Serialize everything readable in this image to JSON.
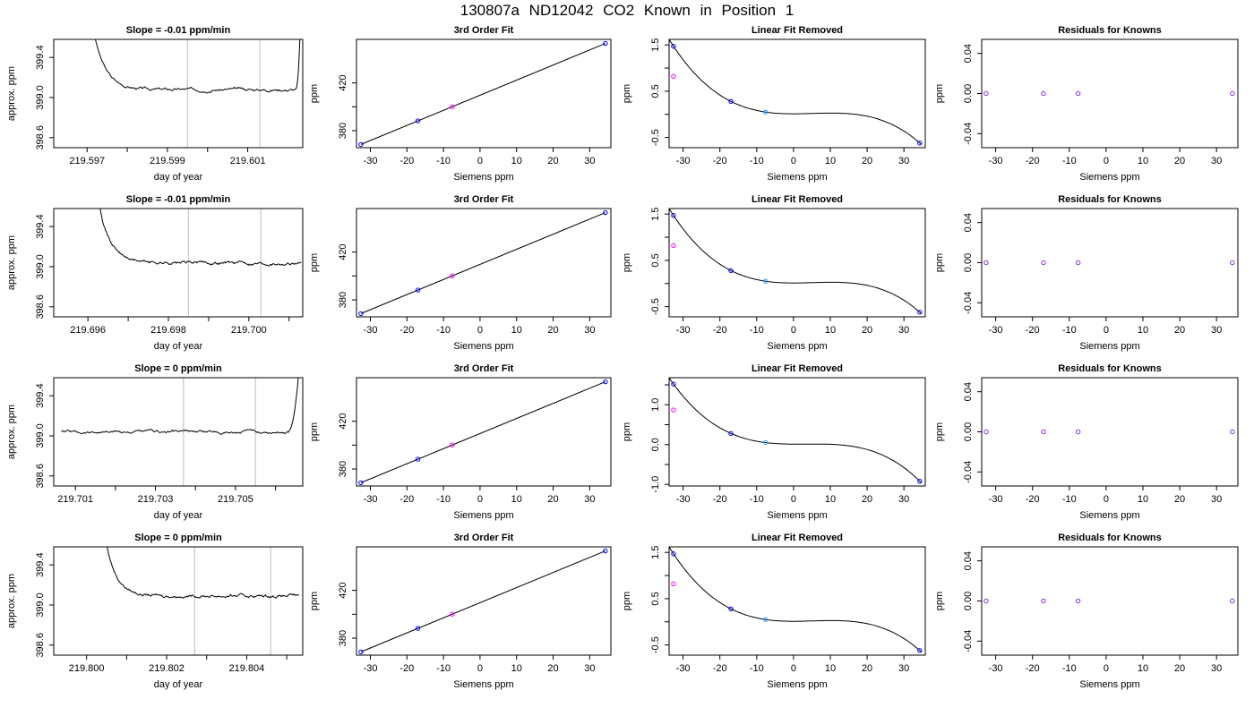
{
  "title": "130807a     ND12042    CO2 Known in Position  1",
  "colors": {
    "trace": "#000000",
    "window_line": "#c8c8c8",
    "point_blue": "#0000ff",
    "point_magenta": "#ff00ff",
    "point_cyan": "#1e9fff",
    "point_purple": "#8a2be2",
    "fit_line": "#000000"
  },
  "chart_data": [
    {
      "type": "line",
      "name": "timeseries-1",
      "title": "Slope =  -0.01  ppm/min",
      "xlabel": "day of year",
      "ylabel": "approx. ppm",
      "xlim": [
        219.59617,
        219.60237
      ],
      "ylim": [
        398.5,
        399.58
      ],
      "xticks": [
        219.597,
        219.598,
        219.599,
        219.6,
        219.601
      ],
      "xticklabels": [
        "219.597",
        "",
        "219.599",
        "",
        "219.601"
      ],
      "yticks": [
        398.6,
        399.0,
        399.4
      ],
      "yticklabels": [
        "398.6",
        "399.0",
        "399.4"
      ],
      "window_lines": [
        219.5995,
        219.6013
      ],
      "trace": {
        "x_start": 219.5972,
        "x_end": 219.6023,
        "y_start": 399.6,
        "level": 399.08,
        "noise": 0.012,
        "rise_at": 219.6022,
        "y_end": 399.6
      }
    },
    {
      "type": "scatter",
      "name": "fit-1",
      "title": "3rd Order Fit",
      "xlabel": "Siemens ppm",
      "ylabel": "ppm",
      "xlim": [
        -33.8,
        35.8
      ],
      "ylim": [
        365.8,
        456.4
      ],
      "xticks": [
        -30,
        -20,
        -10,
        0,
        10,
        20,
        30
      ],
      "xticklabels": [
        "-30",
        "-20",
        "-10",
        "0",
        "10",
        "20",
        "30"
      ],
      "yticks": [
        380,
        400,
        420
      ],
      "yticklabels": [
        "380",
        "",
        "420"
      ],
      "fit_line": [
        [
          -32.6,
          368.5
        ],
        [
          34.3,
          453.0
        ]
      ],
      "points": [
        {
          "x": -32.6,
          "y": 368.5,
          "color": "blue"
        },
        {
          "x": -17.0,
          "y": 388.2,
          "color": "blue"
        },
        {
          "x": -7.6,
          "y": 400.1,
          "color": "magenta"
        },
        {
          "x": 34.3,
          "y": 453.0,
          "color": "blue"
        }
      ]
    },
    {
      "type": "line",
      "name": "linear-removed-1",
      "title": "Linear Fit Removed",
      "xlabel": "Siemens ppm",
      "ylabel": "ppm",
      "xlim": [
        -33.8,
        35.8
      ],
      "ylim": [
        -0.72,
        1.62
      ],
      "xticks": [
        -30,
        -20,
        -10,
        0,
        10,
        20,
        30
      ],
      "xticklabels": [
        "-30",
        "-20",
        "-10",
        "0",
        "10",
        "20",
        "30"
      ],
      "yticks": [
        -0.5,
        0,
        0.5,
        1.0,
        1.5
      ],
      "yticklabels": [
        "-0.5",
        "",
        "0.5",
        "",
        "1.5"
      ],
      "curve": [
        [
          -32.6,
          1.47
        ],
        [
          -17.0,
          0.28
        ],
        [
          -7.6,
          0.05
        ],
        [
          34.3,
          -0.62
        ]
      ],
      "points": [
        {
          "x": -32.6,
          "y": 1.47,
          "color": "blue"
        },
        {
          "x": -32.6,
          "y": 0.82,
          "color": "magenta"
        },
        {
          "x": -17.0,
          "y": 0.28,
          "color": "blue"
        },
        {
          "x": -7.6,
          "y": 0.05,
          "color": "cyan"
        },
        {
          "x": 34.3,
          "y": -0.62,
          "color": "blue"
        }
      ]
    },
    {
      "type": "scatter",
      "name": "residuals-1",
      "title": "Residuals for Knowns",
      "xlabel": "Siemens ppm",
      "ylabel": "ppm",
      "xlim": [
        -33.8,
        35.8
      ],
      "ylim": [
        -0.054,
        0.054
      ],
      "xticks": [
        -30,
        -20,
        -10,
        0,
        10,
        20,
        30
      ],
      "xticklabels": [
        "-30",
        "-20",
        "-10",
        "0",
        "10",
        "20",
        "30"
      ],
      "yticks": [
        -0.04,
        0,
        0.04
      ],
      "yticklabels": [
        "-0.04",
        "0.00",
        "0.04"
      ],
      "points": [
        {
          "x": -32.6,
          "y": 0,
          "color": "purple"
        },
        {
          "x": -17.0,
          "y": 0,
          "color": "purple"
        },
        {
          "x": -7.6,
          "y": 0,
          "color": "purple"
        },
        {
          "x": 34.3,
          "y": 0,
          "color": "purple"
        }
      ]
    },
    {
      "type": "line",
      "name": "timeseries-2",
      "title": "Slope =  -0.01  ppm/min",
      "xlabel": "day of year",
      "ylabel": "approx. ppm",
      "xlim": [
        219.69515,
        219.70134
      ],
      "ylim": [
        398.5,
        399.58
      ],
      "xticks": [
        219.696,
        219.697,
        219.698,
        219.699,
        219.7,
        219.701
      ],
      "xticklabels": [
        "219.696",
        "",
        "219.698",
        "",
        "219.700",
        ""
      ],
      "yticks": [
        398.6,
        399.0,
        399.4
      ],
      "yticklabels": [
        "398.6",
        "399.0",
        "399.4"
      ],
      "window_lines": [
        219.6985,
        219.7003
      ],
      "trace": {
        "x_start": 219.6963,
        "x_end": 219.7013,
        "y_start": 399.6,
        "level": 399.04,
        "noise": 0.014,
        "rise_at": null,
        "y_end": 399.04
      }
    },
    {
      "type": "scatter",
      "name": "fit-2",
      "title": "3rd Order Fit",
      "xlabel": "Siemens ppm",
      "ylabel": "ppm",
      "xlim": [
        -33.8,
        35.8
      ],
      "ylim": [
        365.8,
        456.4
      ],
      "xticks": [
        -30,
        -20,
        -10,
        0,
        10,
        20,
        30
      ],
      "xticklabels": [
        "-30",
        "-20",
        "-10",
        "0",
        "10",
        "20",
        "30"
      ],
      "yticks": [
        380,
        400,
        420
      ],
      "yticklabels": [
        "380",
        "",
        "420"
      ],
      "fit_line": [
        [
          -32.6,
          368.5
        ],
        [
          34.3,
          453.0
        ]
      ],
      "points": [
        {
          "x": -32.6,
          "y": 368.5,
          "color": "blue"
        },
        {
          "x": -17.0,
          "y": 388.2,
          "color": "blue"
        },
        {
          "x": -7.6,
          "y": 400.1,
          "color": "magenta"
        },
        {
          "x": 34.3,
          "y": 453.0,
          "color": "blue"
        }
      ]
    },
    {
      "type": "line",
      "name": "linear-removed-2",
      "title": "Linear Fit Removed",
      "xlabel": "Siemens ppm",
      "ylabel": "ppm",
      "xlim": [
        -33.8,
        35.8
      ],
      "ylim": [
        -0.72,
        1.62
      ],
      "xticks": [
        -30,
        -20,
        -10,
        0,
        10,
        20,
        30
      ],
      "xticklabels": [
        "-30",
        "-20",
        "-10",
        "0",
        "10",
        "20",
        "30"
      ],
      "yticks": [
        -0.5,
        0,
        0.5,
        1.0,
        1.5
      ],
      "yticklabels": [
        "-0.5",
        "",
        "0.5",
        "",
        "1.5"
      ],
      "curve": [
        [
          -32.6,
          1.47
        ],
        [
          -17.0,
          0.28
        ],
        [
          -7.6,
          0.05
        ],
        [
          34.3,
          -0.62
        ]
      ],
      "points": [
        {
          "x": -32.6,
          "y": 1.47,
          "color": "blue"
        },
        {
          "x": -32.6,
          "y": 0.82,
          "color": "magenta"
        },
        {
          "x": -17.0,
          "y": 0.28,
          "color": "blue"
        },
        {
          "x": -7.6,
          "y": 0.05,
          "color": "cyan"
        },
        {
          "x": 34.3,
          "y": -0.62,
          "color": "blue"
        }
      ]
    },
    {
      "type": "scatter",
      "name": "residuals-2",
      "title": "Residuals for Knowns",
      "xlabel": "Siemens ppm",
      "ylabel": "ppm",
      "xlim": [
        -33.8,
        35.8
      ],
      "ylim": [
        -0.054,
        0.054
      ],
      "xticks": [
        -30,
        -20,
        -10,
        0,
        10,
        20,
        30
      ],
      "xticklabels": [
        "-30",
        "-20",
        "-10",
        "0",
        "10",
        "20",
        "30"
      ],
      "yticks": [
        -0.04,
        0,
        0.04
      ],
      "yticklabels": [
        "-0.04",
        "0.00",
        "0.04"
      ],
      "points": [
        {
          "x": -32.6,
          "y": 0,
          "color": "purple"
        },
        {
          "x": -17.0,
          "y": 0,
          "color": "purple"
        },
        {
          "x": -7.6,
          "y": 0,
          "color": "purple"
        },
        {
          "x": 34.3,
          "y": 0,
          "color": "purple"
        }
      ]
    },
    {
      "type": "line",
      "name": "timeseries-3",
      "title": "Slope =  0  ppm/min",
      "xlabel": "day of year",
      "ylabel": "approx. ppm",
      "xlim": [
        219.70046,
        219.70668
      ],
      "ylim": [
        398.5,
        399.58
      ],
      "xticks": [
        219.701,
        219.702,
        219.703,
        219.704,
        219.705,
        219.706
      ],
      "xticklabels": [
        "219.701",
        "",
        "219.703",
        "",
        "219.705",
        ""
      ],
      "yticks": [
        398.6,
        399.0,
        399.4
      ],
      "yticklabels": [
        "398.6",
        "399.0",
        "399.4"
      ],
      "window_lines": [
        219.7037,
        219.7055
      ],
      "trace": {
        "x_start": 219.70065,
        "x_end": 219.70657,
        "y_start": 399.02,
        "level": 399.04,
        "noise": 0.013,
        "rise_at": 219.7063,
        "y_end": 399.6
      }
    },
    {
      "type": "scatter",
      "name": "fit-3",
      "title": "3rd Order Fit",
      "xlabel": "Siemens ppm",
      "ylabel": "ppm",
      "xlim": [
        -33.8,
        35.8
      ],
      "ylim": [
        365.8,
        456.4
      ],
      "xticks": [
        -30,
        -20,
        -10,
        0,
        10,
        20,
        30
      ],
      "xticklabels": [
        "-30",
        "-20",
        "-10",
        "0",
        "10",
        "20",
        "30"
      ],
      "yticks": [
        380,
        400,
        420
      ],
      "yticklabels": [
        "380",
        "",
        "420"
      ],
      "fit_line": [
        [
          -32.6,
          368.5
        ],
        [
          34.3,
          453.0
        ]
      ],
      "points": [
        {
          "x": -32.6,
          "y": 368.5,
          "color": "blue"
        },
        {
          "x": -17.0,
          "y": 388.2,
          "color": "blue"
        },
        {
          "x": -7.6,
          "y": 400.1,
          "color": "magenta"
        },
        {
          "x": 34.3,
          "y": 453.0,
          "color": "blue"
        }
      ]
    },
    {
      "type": "line",
      "name": "linear-removed-3",
      "title": "Linear Fit Removed",
      "xlabel": "Siemens ppm",
      "ylabel": "ppm",
      "xlim": [
        -33.8,
        35.8
      ],
      "ylim": [
        -1.04,
        1.68
      ],
      "xticks": [
        -30,
        -20,
        -10,
        0,
        10,
        20,
        30
      ],
      "xticklabels": [
        "-30",
        "-20",
        "-10",
        "0",
        "10",
        "20",
        "30"
      ],
      "yticks": [
        -1.0,
        -0.5,
        0,
        0.5,
        1.0,
        1.5
      ],
      "yticklabels": [
        "-1.0",
        "",
        "0.0",
        "",
        "1.0",
        ""
      ],
      "curve": [
        [
          -32.6,
          1.52
        ],
        [
          -17.0,
          0.28
        ],
        [
          -7.6,
          0.05
        ],
        [
          34.3,
          -0.92
        ]
      ],
      "points": [
        {
          "x": -32.6,
          "y": 1.52,
          "color": "blue"
        },
        {
          "x": -32.6,
          "y": 0.87,
          "color": "magenta"
        },
        {
          "x": -17.0,
          "y": 0.28,
          "color": "blue"
        },
        {
          "x": -7.6,
          "y": 0.05,
          "color": "cyan"
        },
        {
          "x": 34.3,
          "y": -0.92,
          "color": "blue"
        }
      ]
    },
    {
      "type": "scatter",
      "name": "residuals-3",
      "title": "Residuals for Knowns",
      "xlabel": "Siemens ppm",
      "ylabel": "ppm",
      "xlim": [
        -33.8,
        35.8
      ],
      "ylim": [
        -0.054,
        0.054
      ],
      "xticks": [
        -30,
        -20,
        -10,
        0,
        10,
        20,
        30
      ],
      "xticklabels": [
        "-30",
        "-20",
        "-10",
        "0",
        "10",
        "20",
        "30"
      ],
      "yticks": [
        -0.04,
        0,
        0.04
      ],
      "yticklabels": [
        "-0.04",
        "0.00",
        "0.04"
      ],
      "points": [
        {
          "x": -32.6,
          "y": 0,
          "color": "purple"
        },
        {
          "x": -17.0,
          "y": 0,
          "color": "purple"
        },
        {
          "x": -7.6,
          "y": 0,
          "color": "purple"
        },
        {
          "x": 34.3,
          "y": 0,
          "color": "purple"
        }
      ]
    },
    {
      "type": "line",
      "name": "timeseries-4",
      "title": "Slope =  0  ppm/min",
      "xlabel": "day of year",
      "ylabel": "approx. ppm",
      "xlim": [
        219.79918,
        219.8054
      ],
      "ylim": [
        398.5,
        399.58
      ],
      "xticks": [
        219.8,
        219.801,
        219.802,
        219.803,
        219.804,
        219.805
      ],
      "xticklabels": [
        "219.800",
        "",
        "219.802",
        "",
        "219.804",
        ""
      ],
      "yticks": [
        398.6,
        399.0,
        399.4
      ],
      "yticklabels": [
        "398.6",
        "399.0",
        "399.4"
      ],
      "window_lines": [
        219.8027,
        219.8046
      ],
      "trace": {
        "x_start": 219.8005,
        "x_end": 219.8053,
        "y_start": 399.6,
        "level": 399.09,
        "noise": 0.013,
        "rise_at": null,
        "y_end": 399.09
      }
    },
    {
      "type": "scatter",
      "name": "fit-4",
      "title": "3rd Order Fit",
      "xlabel": "Siemens ppm",
      "ylabel": "ppm",
      "xlim": [
        -33.8,
        35.8
      ],
      "ylim": [
        365.8,
        456.4
      ],
      "xticks": [
        -30,
        -20,
        -10,
        0,
        10,
        20,
        30
      ],
      "xticklabels": [
        "-30",
        "-20",
        "-10",
        "0",
        "10",
        "20",
        "30"
      ],
      "yticks": [
        380,
        400,
        420
      ],
      "yticklabels": [
        "380",
        "",
        "420"
      ],
      "fit_line": [
        [
          -32.6,
          368.5
        ],
        [
          34.3,
          453.0
        ]
      ],
      "points": [
        {
          "x": -32.6,
          "y": 368.5,
          "color": "blue"
        },
        {
          "x": -17.0,
          "y": 388.2,
          "color": "blue"
        },
        {
          "x": -7.6,
          "y": 400.1,
          "color": "magenta"
        },
        {
          "x": 34.3,
          "y": 453.0,
          "color": "blue"
        }
      ]
    },
    {
      "type": "line",
      "name": "linear-removed-4",
      "title": "Linear Fit Removed",
      "xlabel": "Siemens ppm",
      "ylabel": "ppm",
      "xlim": [
        -33.8,
        35.8
      ],
      "ylim": [
        -0.72,
        1.62
      ],
      "xticks": [
        -30,
        -20,
        -10,
        0,
        10,
        20,
        30
      ],
      "xticklabels": [
        "-30",
        "-20",
        "-10",
        "0",
        "10",
        "20",
        "30"
      ],
      "yticks": [
        -0.5,
        0,
        0.5,
        1.0,
        1.5
      ],
      "yticklabels": [
        "-0.5",
        "",
        "0.5",
        "",
        "1.5"
      ],
      "curve": [
        [
          -32.6,
          1.47
        ],
        [
          -17.0,
          0.28
        ],
        [
          -7.6,
          0.05
        ],
        [
          34.3,
          -0.62
        ]
      ],
      "points": [
        {
          "x": -32.6,
          "y": 1.47,
          "color": "blue"
        },
        {
          "x": -32.6,
          "y": 0.82,
          "color": "magenta"
        },
        {
          "x": -17.0,
          "y": 0.28,
          "color": "blue"
        },
        {
          "x": -7.6,
          "y": 0.05,
          "color": "cyan"
        },
        {
          "x": 34.3,
          "y": -0.62,
          "color": "blue"
        }
      ]
    },
    {
      "type": "scatter",
      "name": "residuals-4",
      "title": "Residuals for Knowns",
      "xlabel": "Siemens ppm",
      "ylabel": "ppm",
      "xlim": [
        -33.8,
        35.8
      ],
      "ylim": [
        -0.054,
        0.054
      ],
      "xticks": [
        -30,
        -20,
        -10,
        0,
        10,
        20,
        30
      ],
      "xticklabels": [
        "-30",
        "-20",
        "-10",
        "0",
        "10",
        "20",
        "30"
      ],
      "yticks": [
        -0.04,
        0,
        0.04
      ],
      "yticklabels": [
        "-0.04",
        "0.00",
        "0.04"
      ],
      "points": [
        {
          "x": -32.6,
          "y": 0,
          "color": "purple"
        },
        {
          "x": -17.0,
          "y": 0,
          "color": "purple"
        },
        {
          "x": -7.6,
          "y": 0,
          "color": "purple"
        },
        {
          "x": 34.3,
          "y": 0,
          "color": "purple"
        }
      ]
    }
  ]
}
